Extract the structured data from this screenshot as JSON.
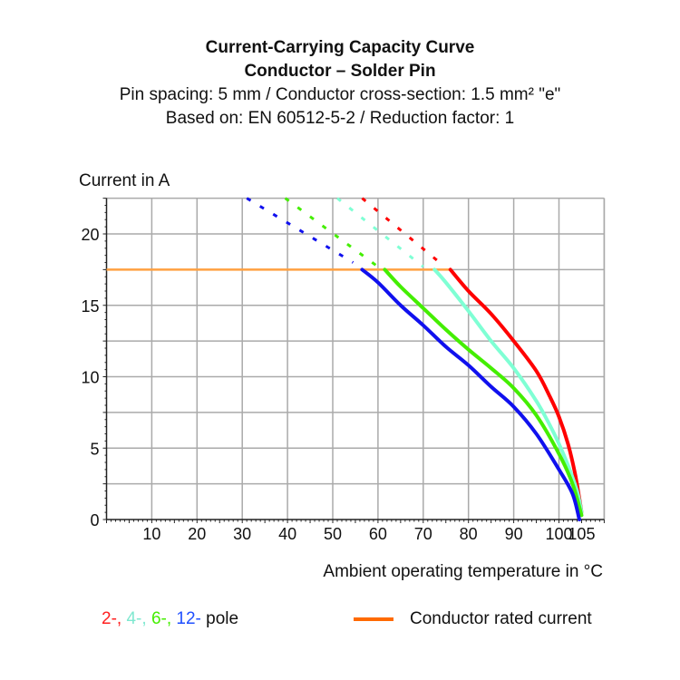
{
  "chart_data": {
    "type": "line",
    "title": "Current-Carrying Capacity Curve",
    "subtitle_lines": [
      "Conductor – Solder Pin",
      "Pin spacing: 5 mm / Conductor cross-section: 1.5 mm² \"e\"",
      "Based on: EN 60512-5-2 / Reduction factor: 1"
    ],
    "ylabel": "Current in A",
    "xlabel": "Ambient operating temperature in °C",
    "xlim": [
      0,
      110
    ],
    "ylim": [
      0,
      22.5
    ],
    "xticks": [
      10,
      20,
      30,
      40,
      50,
      60,
      70,
      80,
      90,
      100,
      105
    ],
    "yticks": [
      0,
      5,
      10,
      15,
      20
    ],
    "grid": true,
    "rated_current": {
      "name": "Conductor rated current",
      "value": 17.5,
      "x_range": [
        0,
        76
      ],
      "color": "#ff6a00"
    },
    "series": [
      {
        "name": "2-",
        "color": "#ff0000",
        "points": [
          [
            76,
            17.5
          ],
          [
            80,
            16.0
          ],
          [
            85,
            14.4
          ],
          [
            90,
            12.5
          ],
          [
            95,
            10.4
          ],
          [
            98,
            8.6
          ],
          [
            100,
            7.2
          ],
          [
            102,
            5.3
          ],
          [
            103.5,
            3.3
          ],
          [
            104.5,
            1.5
          ],
          [
            105,
            0.5
          ]
        ],
        "dashed": [
          [
            56.5,
            22.5
          ],
          [
            74,
            17.9
          ]
        ]
      },
      {
        "name": "4-",
        "color": "#7fffd4",
        "points": [
          [
            72.5,
            17.5
          ],
          [
            75,
            16.6
          ],
          [
            80,
            14.6
          ],
          [
            85,
            12.5
          ],
          [
            90,
            10.6
          ],
          [
            95,
            8.3
          ],
          [
            98,
            6.6
          ],
          [
            100,
            5.3
          ],
          [
            102,
            3.8
          ],
          [
            104,
            2
          ],
          [
            105,
            0.5
          ]
        ],
        "dashed": [
          [
            51,
            22.5
          ],
          [
            70,
            17.7
          ]
        ]
      },
      {
        "name": "6-",
        "color": "#44ee00",
        "points": [
          [
            61.5,
            17.5
          ],
          [
            65,
            16.3
          ],
          [
            70,
            14.8
          ],
          [
            75,
            13.3
          ],
          [
            80,
            11.9
          ],
          [
            85,
            10.6
          ],
          [
            90,
            9.2
          ],
          [
            95,
            7.3
          ],
          [
            100,
            4.6
          ],
          [
            103,
            2.5
          ],
          [
            105,
            0.3
          ]
        ],
        "dashed": [
          [
            39.5,
            22.5
          ],
          [
            60,
            17.7
          ]
        ]
      },
      {
        "name": "12-",
        "color": "#1010ee",
        "points": [
          [
            56.5,
            17.5
          ],
          [
            60,
            16.6
          ],
          [
            65,
            15
          ],
          [
            70,
            13.6
          ],
          [
            75,
            12.1
          ],
          [
            80,
            10.8
          ],
          [
            85,
            9.3
          ],
          [
            90,
            7.9
          ],
          [
            95,
            6.0
          ],
          [
            100,
            3.5
          ],
          [
            103,
            1.8
          ],
          [
            104.5,
            0
          ]
        ],
        "dashed": [
          [
            31,
            22.5
          ],
          [
            54.5,
            18
          ]
        ]
      }
    ],
    "legend": {
      "suffix": "pole",
      "placement": "bottom"
    }
  }
}
